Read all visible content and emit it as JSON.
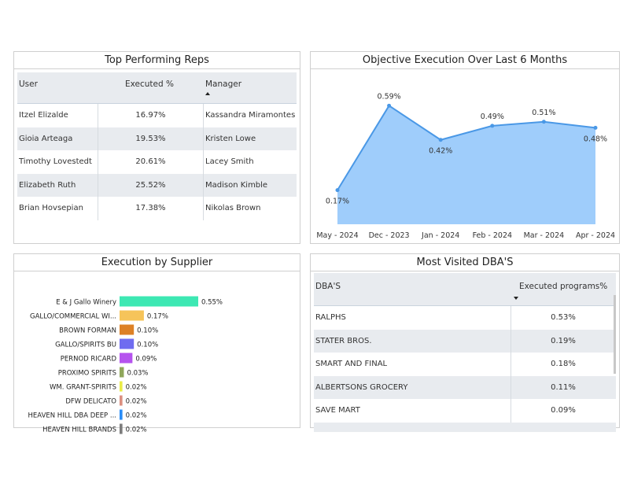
{
  "reps": {
    "title": "Top Performing Reps",
    "headers": {
      "user": "User",
      "executed": "Executed %",
      "manager": "Manager"
    },
    "rows": [
      {
        "user": "Itzel Elizalde",
        "executed": "16.97%",
        "manager": "Kassandra Miramontes"
      },
      {
        "user": "Gioia Arteaga",
        "executed": "19.53%",
        "manager": "Kristen Lowe"
      },
      {
        "user": "Timothy Lovestedt",
        "executed": "20.61%",
        "manager": "Lacey Smith"
      },
      {
        "user": "Elizabeth Ruth",
        "executed": "25.52%",
        "manager": "Madison Kimble"
      },
      {
        "user": "Brian Hovsepian",
        "executed": "17.38%",
        "manager": "Nikolas Brown"
      }
    ]
  },
  "objective": {
    "title": "Objective Execution Over Last 6 Months",
    "fill_color": "#9fcdfb",
    "line_color": "#4a98e6"
  },
  "supplier": {
    "title": "Execution by Supplier"
  },
  "dba": {
    "title": "Most Visited DBA'S",
    "headers": {
      "name": "DBA'S",
      "executed": "Executed programs%"
    },
    "rows": [
      {
        "name": "RALPHS",
        "executed": "0.53%"
      },
      {
        "name": "STATER BROS.",
        "executed": "0.19%"
      },
      {
        "name": "SMART AND FINAL",
        "executed": "0.18%"
      },
      {
        "name": "ALBERTSONS GROCERY",
        "executed": "0.11%"
      },
      {
        "name": "SAVE MART",
        "executed": "0.09%"
      }
    ]
  },
  "chart_data": [
    {
      "type": "area",
      "title": "Objective Execution Over Last 6 Months",
      "categories": [
        "May - 2024",
        "Dec - 2023",
        "Jan - 2024",
        "Feb - 2024",
        "Mar - 2024",
        "Apr - 2024"
      ],
      "values": [
        0.17,
        0.59,
        0.42,
        0.49,
        0.51,
        0.48
      ],
      "labels": [
        "0.17%",
        "0.59%",
        "0.42%",
        "0.49%",
        "0.51%",
        "0.48%"
      ],
      "ylim": [
        0,
        0.65
      ],
      "grid": false
    },
    {
      "type": "bar",
      "orientation": "horizontal",
      "title": "Execution by Supplier",
      "categories": [
        "E & J Gallo Winery",
        "GALLO/COMMERCIAL WI...",
        "BROWN FORMAN",
        "GALLO/SPIRITS BU",
        "PERNOD RICARD",
        "PROXIMO SPIRITS",
        "WM. GRANT-SPIRITS",
        "DFW DELICATO",
        "HEAVEN HILL DBA DEEP ...",
        "HEAVEN HILL BRANDS"
      ],
      "values": [
        0.55,
        0.17,
        0.1,
        0.1,
        0.09,
        0.03,
        0.02,
        0.02,
        0.02,
        0.02
      ],
      "labels": [
        "0.55%",
        "0.17%",
        "0.10%",
        "0.10%",
        "0.09%",
        "0.03%",
        "0.02%",
        "0.02%",
        "0.02%",
        "0.02%"
      ],
      "colors": [
        "#3de8b3",
        "#f6c45a",
        "#dd8126",
        "#6f6cf0",
        "#b553ee",
        "#8fa65b",
        "#eaec47",
        "#dc8f80",
        "#2a8cf7",
        "#7c7c7c"
      ],
      "xlim": [
        0,
        0.55
      ]
    }
  ]
}
